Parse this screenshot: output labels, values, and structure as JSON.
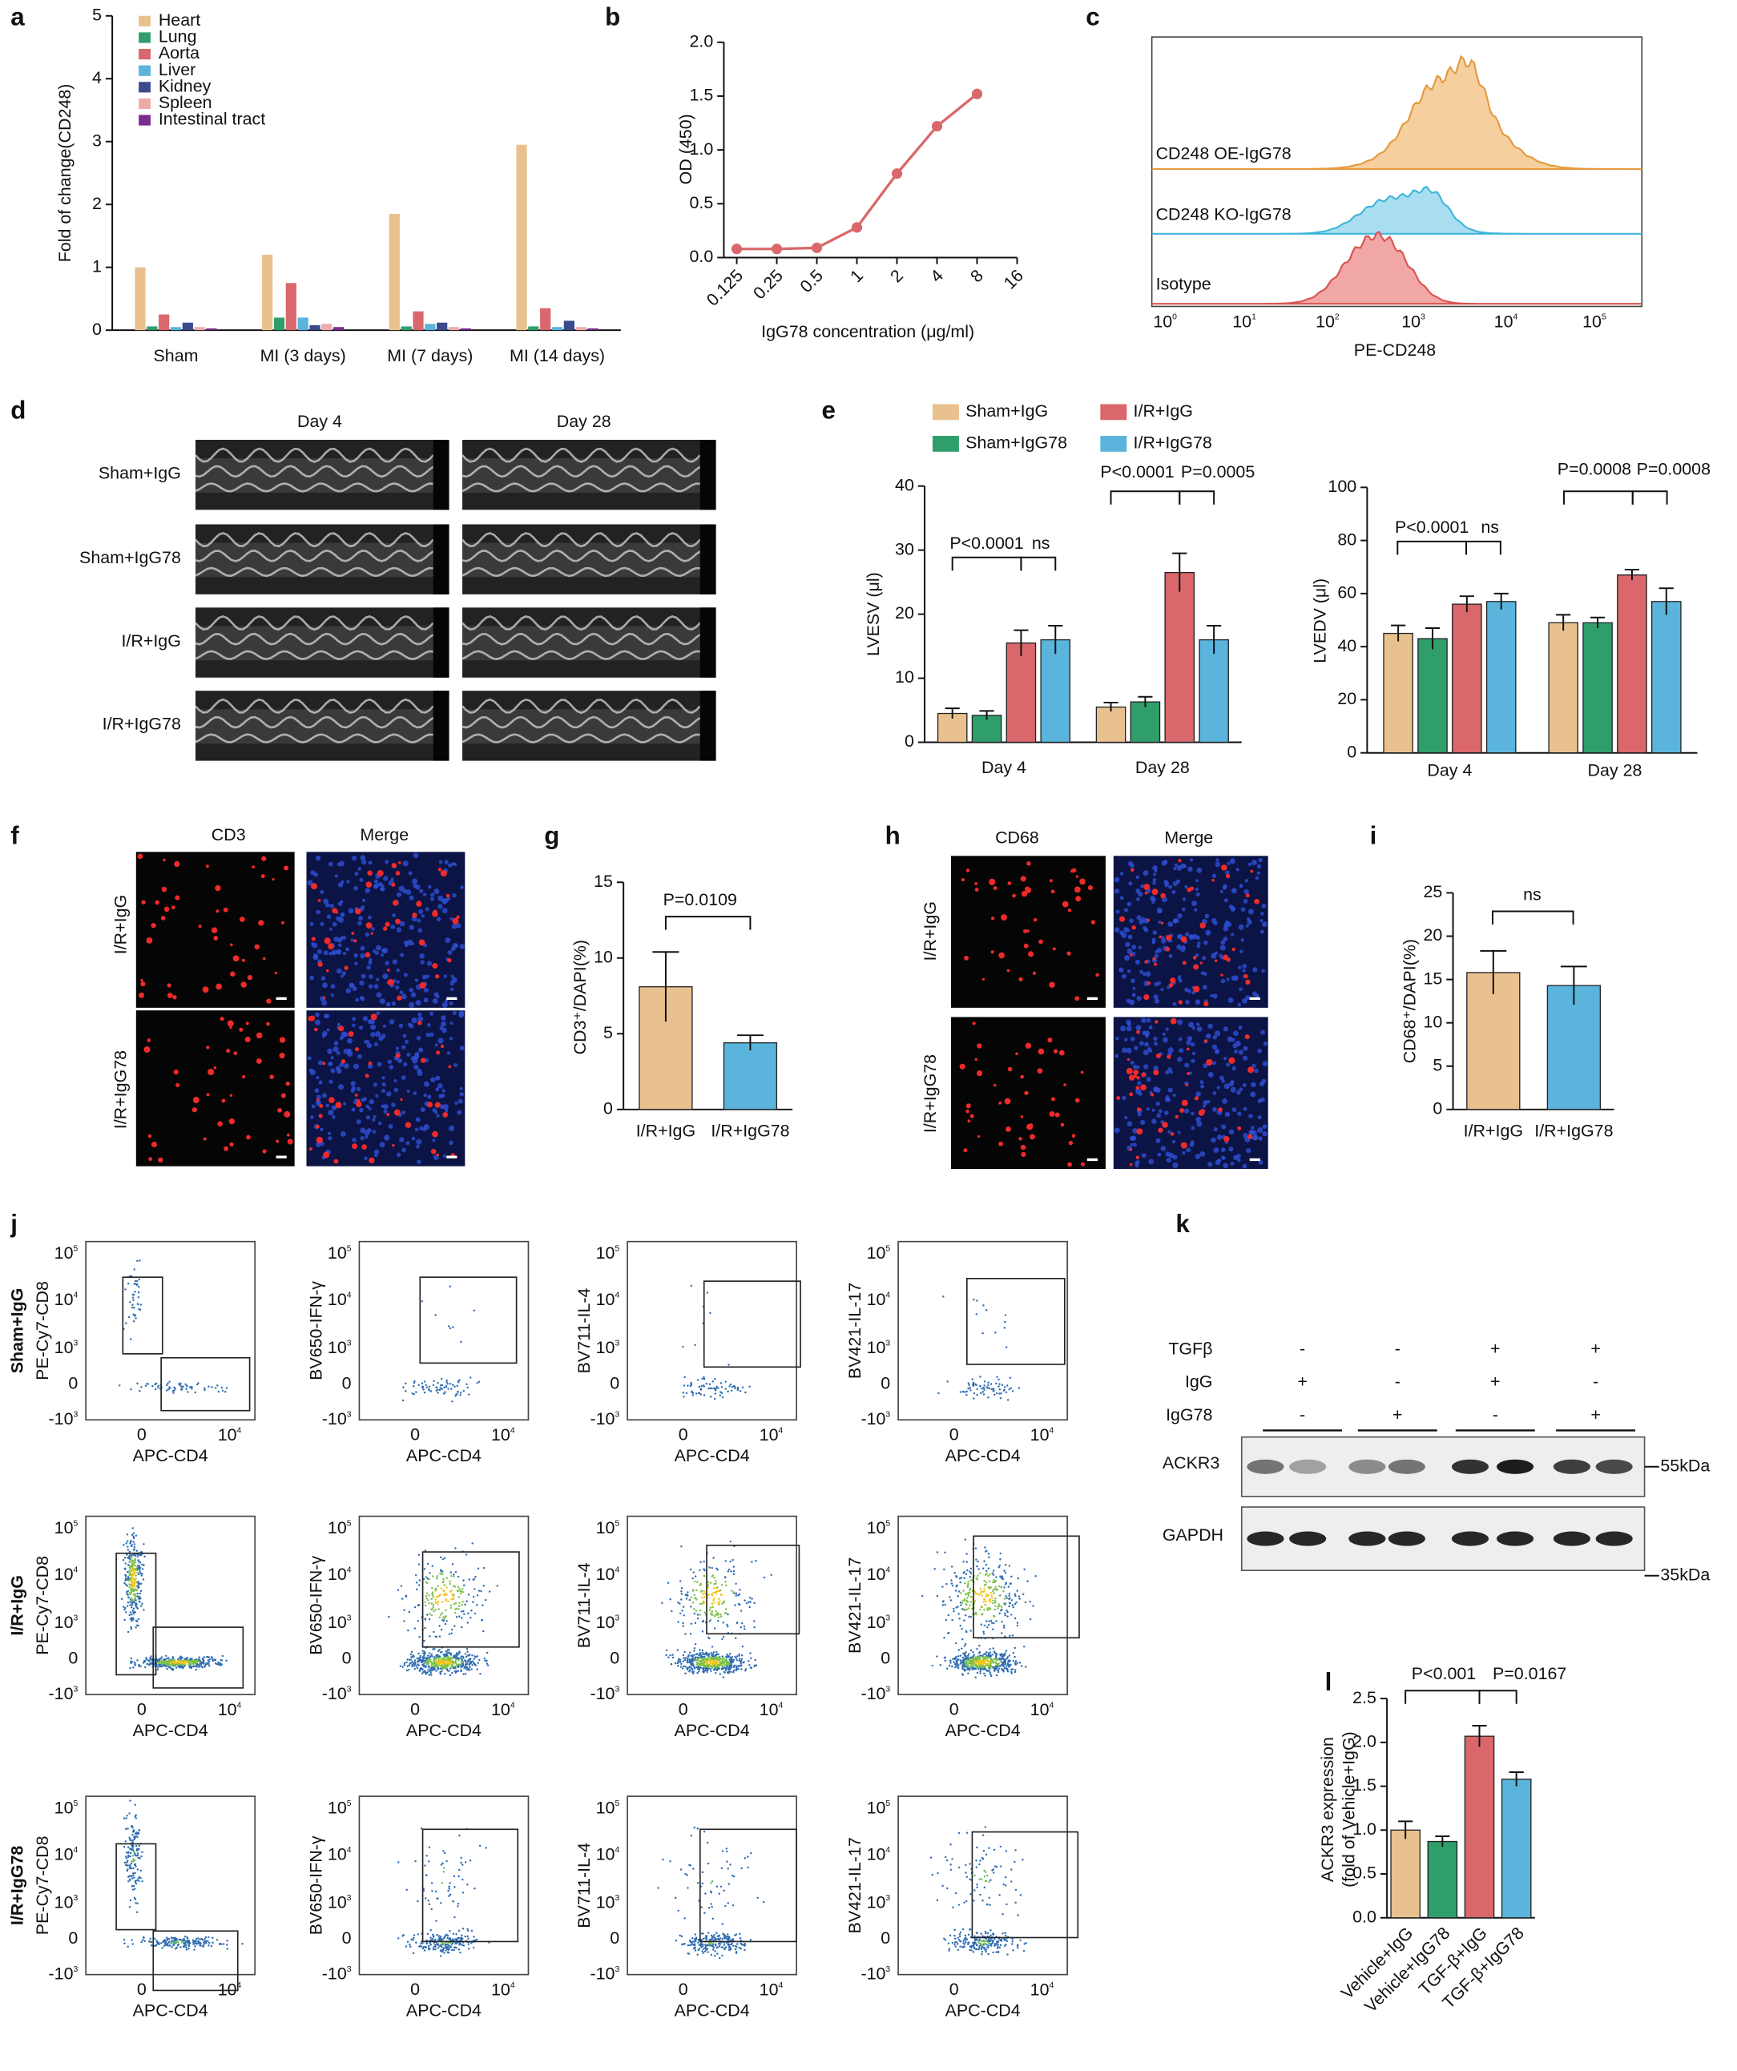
{
  "chart_data": [
    {
      "type": "bar",
      "panel": "a",
      "ylabel": "Fold of change(CD248)",
      "categories": [
        "Sham",
        "MI (3 days)",
        "MI (7 days)",
        "MI (14 days)"
      ],
      "series": [
        {
          "name": "Heart",
          "color": "#e9c18f",
          "values": [
            1.0,
            1.2,
            1.85,
            2.95
          ]
        },
        {
          "name": "Lung",
          "color": "#2f9e6b",
          "values": [
            0.06,
            0.2,
            0.06,
            0.06
          ]
        },
        {
          "name": "Aorta",
          "color": "#d9676b",
          "values": [
            0.25,
            0.75,
            0.3,
            0.35
          ]
        },
        {
          "name": "Liver",
          "color": "#5ab4dc",
          "values": [
            0.05,
            0.2,
            0.1,
            0.05
          ]
        },
        {
          "name": "Kidney",
          "color": "#3b4a8c",
          "values": [
            0.12,
            0.08,
            0.12,
            0.15
          ]
        },
        {
          "name": "Spleen",
          "color": "#eeaaa8",
          "values": [
            0.05,
            0.1,
            0.05,
            0.05
          ]
        },
        {
          "name": "Intestinal tract",
          "color": "#7a2c8c",
          "values": [
            0.03,
            0.05,
            0.03,
            0.03
          ]
        }
      ],
      "ylim": [
        0,
        5
      ],
      "yticks": [
        0,
        1,
        2,
        3,
        4,
        5
      ]
    },
    {
      "type": "line",
      "panel": "b",
      "ylabel": "OD (450)",
      "xlabel": "IgG78 concentration (μg/ml)",
      "x": [
        0.125,
        0.25,
        0.5,
        1,
        2,
        4,
        8
      ],
      "values": [
        0.08,
        0.08,
        0.09,
        0.28,
        0.78,
        1.22,
        1.52
      ],
      "color": "#d9676b",
      "xscale": "log2",
      "xlim": [
        0.1,
        16
      ],
      "xticks": [
        0.125,
        0.25,
        0.5,
        1,
        2,
        4,
        8,
        16
      ],
      "ylim": [
        0,
        2
      ],
      "yticks": [
        {
          "value": 0,
          "label": "0.0"
        },
        0.5,
        {
          "value": 1,
          "label": "1.0"
        },
        1.5,
        {
          "value": 2,
          "label": "2.0"
        }
      ]
    },
    {
      "type": "bar",
      "panel": "e",
      "ylabel": "LVESV (μl)",
      "categories": [
        "Day 4",
        "Day 28"
      ],
      "series": [
        {
          "name": "Sham+IgG",
          "color": "#e9c18f",
          "values": [
            4.5,
            5.5
          ],
          "errors": [
            0.8,
            0.7
          ]
        },
        {
          "name": "Sham+IgG78",
          "color": "#2f9e6b",
          "values": [
            4.2,
            6.3
          ],
          "errors": [
            0.7,
            0.8
          ]
        },
        {
          "name": "I/R+IgG",
          "color": "#d9676b",
          "values": [
            15.5,
            26.5
          ],
          "errors": [
            2.0,
            3.0
          ]
        },
        {
          "name": "I/R+IgG78",
          "color": "#5ab4dc",
          "values": [
            16.0,
            16.0
          ],
          "errors": [
            2.2,
            2.2
          ]
        }
      ],
      "ylim": [
        0,
        40
      ],
      "yticks": [
        0,
        10,
        20,
        30,
        40
      ],
      "annotations": [
        "P<0.0001",
        "ns",
        "P<0.0001",
        "P=0.0005"
      ]
    },
    {
      "type": "bar",
      "ylabel": "LVEDV (μl)",
      "categories": [
        "Day 4",
        "Day 28"
      ],
      "series": [
        {
          "color": "#e9c18f",
          "values": [
            45,
            49
          ],
          "errors": [
            3,
            3
          ]
        },
        {
          "color": "#2f9e6b",
          "values": [
            43,
            49
          ],
          "errors": [
            4,
            2
          ]
        },
        {
          "color": "#d9676b",
          "values": [
            56,
            67
          ],
          "errors": [
            3,
            2
          ]
        },
        {
          "color": "#5ab4dc",
          "values": [
            57,
            57
          ],
          "errors": [
            3,
            5
          ]
        }
      ],
      "ylim": [
        0,
        100
      ],
      "yticks": [
        0,
        20,
        40,
        60,
        80,
        100
      ],
      "annotations": [
        "P<0.0001",
        "ns",
        "P=0.0008",
        "P=0.0008"
      ]
    },
    {
      "type": "bar",
      "panel": "g",
      "ylabel": "CD3⁺/DAPI(%)",
      "categories": [
        "I/R+IgG",
        "I/R+IgG78"
      ],
      "values": [
        8.1,
        4.4
      ],
      "errors": [
        2.3,
        0.5
      ],
      "colors": [
        "#e9c18f",
        "#5ab4dc"
      ],
      "ylim": [
        0,
        15
      ],
      "yticks": [
        0,
        5,
        10,
        15
      ],
      "annotations": [
        "P=0.0109"
      ]
    },
    {
      "type": "bar",
      "panel": "i",
      "ylabel": "CD68⁺/DAPI(%)",
      "categories": [
        "I/R+IgG",
        "I/R+IgG78"
      ],
      "values": [
        15.8,
        14.3
      ],
      "errors": [
        2.5,
        2.2
      ],
      "colors": [
        "#e9c18f",
        "#5ab4dc"
      ],
      "ylim": [
        0,
        25
      ],
      "yticks": [
        0,
        5,
        10,
        15,
        20,
        25
      ],
      "annotations": [
        "ns"
      ]
    },
    {
      "type": "bar",
      "panel": "l",
      "ylabel": [
        "ACKR3 expression",
        "(fold of Vehicle+IgG)"
      ],
      "categories": [
        "Vehicle+IgG",
        "Vehicle+IgG78",
        "TGF-β+IgG",
        "TGF-β+IgG78"
      ],
      "values": [
        1.0,
        0.87,
        2.07,
        1.58
      ],
      "errors": [
        0.1,
        0.06,
        0.12,
        0.08
      ],
      "colors": [
        "#e9c18f",
        "#2f9e6b",
        "#d9676b",
        "#5ab4dc"
      ],
      "ylim": [
        0,
        2.5
      ],
      "yticks": [
        {
          "value": 0,
          "label": "0.0"
        },
        0.5,
        {
          "value": 1,
          "label": "1.0"
        },
        1.5,
        {
          "value": 2,
          "label": "2.0"
        },
        2.5
      ],
      "annotations": [
        "P<0.001",
        "P=0.0167"
      ]
    }
  ],
  "panel_c": {
    "panel": "c",
    "labels": [
      "CD248 OE-IgG78",
      "CD248 KO-IgG78",
      "Isotype"
    ],
    "xlabel": "PE-CD248",
    "xticks": [
      {
        "base": "10",
        "exponent": "0"
      },
      {
        "base": "10",
        "exponent": "1"
      },
      {
        "base": "10",
        "exponent": "2"
      },
      {
        "base": "10",
        "exponent": "3"
      },
      {
        "base": "10",
        "exponent": "4"
      },
      {
        "base": "10",
        "exponent": "5"
      }
    ]
  },
  "panel_d": {
    "panel": "d",
    "columns": [
      "Day 4",
      "Day 28"
    ],
    "rows": [
      "Sham+IgG",
      "Sham+IgG78",
      "I/R+IgG",
      "I/R+IgG78"
    ]
  },
  "panel_f": {
    "panel": "f",
    "columns": [
      "CD3",
      "Merge"
    ],
    "rows": [
      "I/R+IgG",
      "I/R+IgG78"
    ]
  },
  "panel_h": {
    "panel": "h",
    "columns": [
      "CD68",
      "Merge"
    ],
    "rows": [
      "I/R+IgG",
      "I/R+IgG78"
    ]
  },
  "panel_j": {
    "panel": "j",
    "rows": [
      "Sham+IgG",
      "I/R+IgG",
      "I/R+IgG78"
    ],
    "ylabels": [
      "PE-Cy7-CD8",
      "BV650-IFN-γ",
      "BV711-IL-4",
      "BV421-IL-17"
    ],
    "xlabel": "APC-CD4",
    "yticks": [
      {
        "base": "10",
        "exponent": "5"
      },
      {
        "base": "10",
        "exponent": "4"
      },
      {
        "base": "10",
        "exponent": "3"
      },
      {
        "text": "0"
      },
      {
        "base": "-10",
        "exponent": "3"
      }
    ],
    "xticks": [
      {
        "text": "0"
      },
      {
        "base": "10",
        "exponent": "4"
      }
    ]
  },
  "panel_k": {
    "panel": "k",
    "treatments": [
      {
        "name": "TGFβ",
        "signs": [
          "-",
          "-",
          "+",
          "+"
        ]
      },
      {
        "name": "IgG",
        "signs": [
          "+",
          "-",
          "+",
          "-"
        ]
      },
      {
        "name": "IgG78",
        "signs": [
          "-",
          "+",
          "-",
          "+"
        ]
      }
    ],
    "bands": [
      {
        "name": "ACKR3",
        "size": "55kDa"
      },
      {
        "name": "GAPDH",
        "size": "35kDa"
      }
    ]
  }
}
